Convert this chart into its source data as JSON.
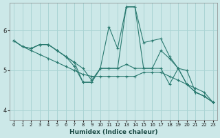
{
  "xlabel": "Humidex (Indice chaleur)",
  "bg_color": "#cce8e8",
  "grid_color": "#aad4d4",
  "line_color": "#2a7a70",
  "xlim": [
    -0.5,
    23.5
  ],
  "ylim": [
    3.75,
    6.7
  ],
  "yticks": [
    4,
    5,
    6
  ],
  "xticks": [
    0,
    1,
    2,
    3,
    4,
    5,
    6,
    7,
    8,
    9,
    10,
    11,
    12,
    13,
    14,
    15,
    16,
    17,
    18,
    19,
    20,
    21,
    22,
    23
  ],
  "series": [
    {
      "x": [
        0,
        1,
        2,
        3,
        4,
        5,
        6,
        7,
        8,
        9,
        10,
        11,
        12,
        13,
        14,
        15,
        16,
        17,
        18,
        19,
        20,
        21,
        22,
        23
      ],
      "y": [
        5.75,
        5.6,
        5.5,
        5.4,
        5.3,
        5.2,
        5.1,
        5.0,
        4.9,
        4.85,
        4.85,
        4.85,
        4.85,
        4.85,
        4.85,
        4.95,
        4.95,
        4.95,
        4.85,
        4.75,
        4.65,
        4.55,
        4.45,
        4.2
      ]
    },
    {
      "x": [
        0,
        1,
        2,
        3,
        4,
        5,
        6,
        7,
        8,
        9,
        10,
        11,
        12,
        13,
        14,
        15,
        16,
        17,
        18,
        19,
        20,
        21,
        22,
        23
      ],
      "y": [
        5.75,
        5.6,
        5.55,
        5.65,
        5.65,
        5.5,
        5.35,
        5.2,
        5.05,
        4.75,
        5.05,
        6.1,
        5.55,
        6.6,
        6.6,
        5.7,
        5.75,
        5.8,
        5.35,
        5.05,
        4.65,
        4.45,
        4.35,
        4.2
      ]
    },
    {
      "x": [
        0,
        1,
        2,
        3,
        4,
        5,
        6,
        7,
        8,
        9,
        10,
        11,
        12,
        13,
        14,
        15,
        16,
        17,
        18,
        19,
        20,
        21,
        22,
        23
      ],
      "y": [
        5.75,
        5.6,
        5.55,
        5.65,
        5.65,
        5.5,
        5.35,
        5.1,
        4.7,
        4.7,
        5.05,
        5.05,
        5.05,
        5.15,
        5.05,
        5.05,
        5.05,
        5.5,
        5.3,
        5.05,
        4.65,
        4.45,
        4.35,
        4.2
      ]
    },
    {
      "x": [
        2,
        3,
        4,
        5,
        6,
        7,
        8,
        9,
        10,
        11,
        12,
        13,
        14,
        15,
        16,
        17,
        18,
        19,
        20,
        21,
        22,
        23
      ],
      "y": [
        5.55,
        5.65,
        5.65,
        5.5,
        5.35,
        5.2,
        4.7,
        4.7,
        5.05,
        5.05,
        5.05,
        6.6,
        6.6,
        5.05,
        5.05,
        5.05,
        4.65,
        5.05,
        5.0,
        4.45,
        4.35,
        4.2
      ]
    }
  ]
}
